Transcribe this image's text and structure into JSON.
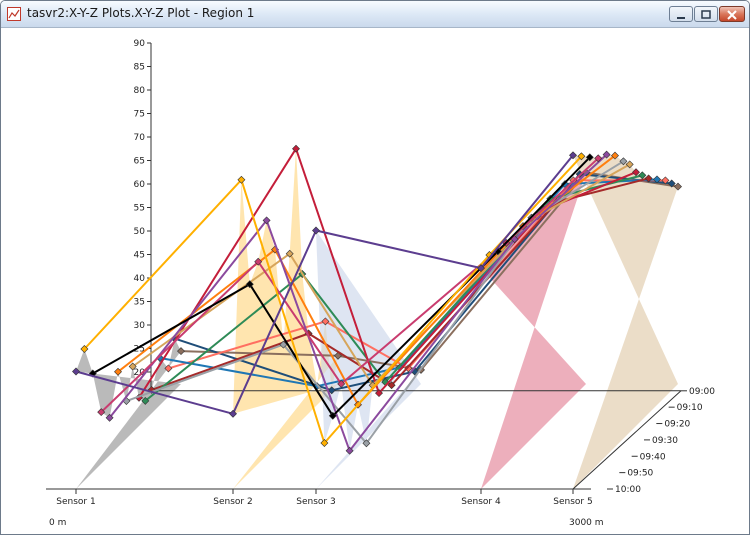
{
  "window": {
    "title": "tasvr2:X-Y-Z Plots.X-Y-Z Plot - Region 1",
    "buttons": [
      "minimize",
      "maximize",
      "close"
    ]
  },
  "chart_data": {
    "type": "line",
    "subtype": "3d-xyz-perspective",
    "categories": [
      "Sensor 1",
      "Sensor 2",
      "Sensor 3",
      "Sensor 4",
      "Sensor 5"
    ],
    "x_range_labels": [
      "0 m",
      "3000 m"
    ],
    "y_ticks": [
      20,
      25,
      30,
      35,
      40,
      45,
      50,
      55,
      60,
      65,
      70,
      75,
      80,
      85,
      90
    ],
    "ylim": [
      16,
      90
    ],
    "z_ticks": [
      "09:00",
      "09:10",
      "09:20",
      "09:30",
      "09:40",
      "09:50",
      "10:00"
    ],
    "grid": false,
    "series": [
      {
        "color": "#5c3d8f",
        "z": 0.0,
        "values": [
          41,
          32,
          71,
          63,
          87
        ]
      },
      {
        "color": "#ffb000",
        "z": 0.08,
        "values": [
          44,
          80,
          24,
          64,
          85
        ]
      },
      {
        "color": "#000000",
        "z": 0.16,
        "values": [
          37,
          56,
          28,
          63,
          83
        ]
      },
      {
        "color": "#c93c6f",
        "z": 0.24,
        "values": [
          27,
          59,
          33,
          63,
          81
        ]
      },
      {
        "color": "#8b4a9e",
        "z": 0.32,
        "values": [
          24,
          66,
          17,
          62,
          80
        ]
      },
      {
        "color": "#ff7f0e",
        "z": 0.4,
        "values": [
          32,
          58,
          25,
          63,
          78
        ]
      },
      {
        "color": "#9aa0a6",
        "z": 0.48,
        "values": [
          24,
          36,
          15,
          63,
          75
        ]
      },
      {
        "color": "#d6a55c",
        "z": 0.54,
        "values": [
          30,
          54,
          26,
          62,
          73
        ]
      },
      {
        "color": "#c41e3a",
        "z": 0.6,
        "values": [
          22,
          75,
          23,
          62,
          70
        ]
      },
      {
        "color": "#2e8b57",
        "z": 0.66,
        "values": [
          20,
          47,
          24,
          63,
          68
        ]
      },
      {
        "color": "#a52a2a",
        "z": 0.72,
        "values": [
          21,
          33,
          22,
          61,
          66
        ]
      },
      {
        "color": "#1f77b4",
        "z": 0.8,
        "values": [
          26,
          20,
          24,
          63,
          64
        ]
      },
      {
        "color": "#ff6f61",
        "z": 0.88,
        "values": [
          22,
          32,
          22,
          62,
          62
        ]
      },
      {
        "color": "#1f4e79",
        "z": 0.94,
        "values": [
          27,
          16,
          20,
          62,
          60
        ]
      },
      {
        "color": "#8b6f5e",
        "z": 1.0,
        "values": [
          23,
          22,
          19,
          61,
          58
        ]
      }
    ],
    "fill_colors": [
      "#8c8c8c",
      "#ffd37a",
      "#c8d3ea",
      "#e17a8f",
      "#ddc7a3"
    ]
  }
}
